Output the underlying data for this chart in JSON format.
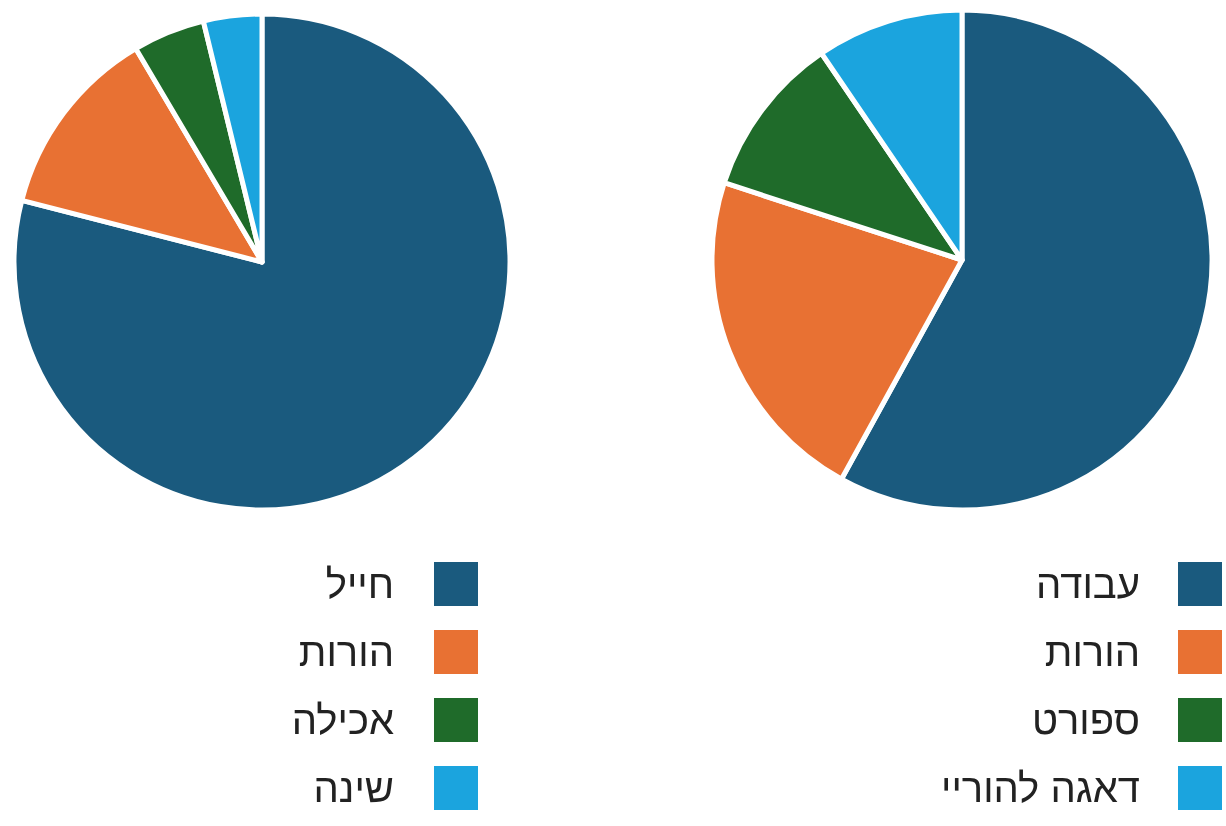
{
  "chart_data": [
    {
      "type": "pie",
      "categories": [
        "חייל",
        "הורות",
        "אכילה",
        "שינה"
      ],
      "values": [
        79,
        12.5,
        4.7,
        3.8
      ],
      "colors": [
        "#1a5a7e",
        "#e87133",
        "#1f6b2a",
        "#1ba4de"
      ],
      "legend": "bottom"
    },
    {
      "type": "pie",
      "categories": [
        "עבודה",
        "הורות",
        "ספורט",
        "דאגה להוריי"
      ],
      "values": [
        58,
        22,
        10.5,
        9.5
      ],
      "colors": [
        "#1a5a7e",
        "#e87133",
        "#1f6b2a",
        "#1ba4de"
      ],
      "legend": "bottom"
    }
  ]
}
